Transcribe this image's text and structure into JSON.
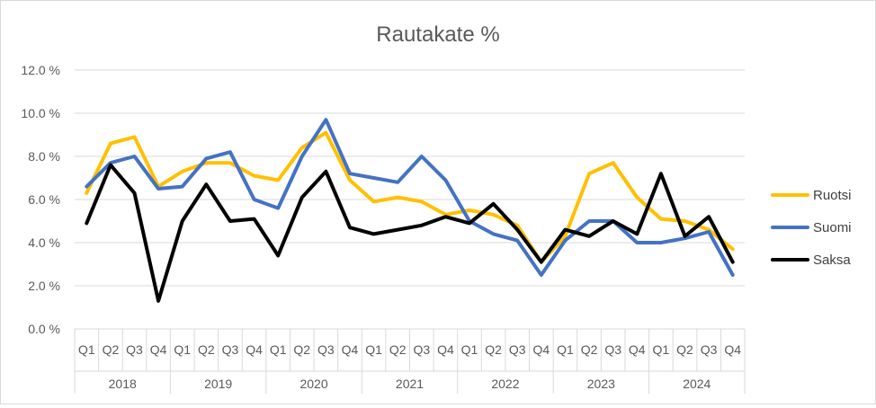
{
  "chart_data": {
    "type": "line",
    "title": "Rautakate %",
    "xlabel": "",
    "ylabel": "",
    "ylim": [
      0,
      12
    ],
    "yticks": [
      "0.0 %",
      "2.0 %",
      "4.0 %",
      "6.0 %",
      "8.0 %",
      "10.0 %",
      "12.0 %"
    ],
    "grid": true,
    "legend_position": "right",
    "quarters": [
      "Q1",
      "Q2",
      "Q3",
      "Q4"
    ],
    "years": [
      "2018",
      "2019",
      "2020",
      "2021",
      "2022",
      "2023",
      "2024"
    ],
    "x": [
      "2018 Q1",
      "2018 Q2",
      "2018 Q3",
      "2018 Q4",
      "2019 Q1",
      "2019 Q2",
      "2019 Q3",
      "2019 Q4",
      "2020 Q1",
      "2020 Q2",
      "2020 Q3",
      "2020 Q4",
      "2021 Q1",
      "2021 Q2",
      "2021 Q3",
      "2021 Q4",
      "2022 Q1",
      "2022 Q2",
      "2022 Q3",
      "2022 Q4",
      "2023 Q1",
      "2023 Q2",
      "2023 Q3",
      "2023 Q4",
      "2024 Q1",
      "2024 Q2",
      "2024 Q3",
      "2024 Q4"
    ],
    "series": [
      {
        "name": "Ruotsi",
        "color": "#ffc000",
        "values": [
          6.3,
          8.6,
          8.9,
          6.6,
          7.3,
          7.7,
          7.7,
          7.1,
          6.9,
          8.4,
          9.1,
          6.9,
          5.9,
          6.1,
          5.9,
          5.3,
          5.5,
          5.3,
          4.8,
          3.1,
          4.3,
          7.2,
          7.7,
          6.1,
          5.1,
          5.0,
          4.6,
          3.7
        ]
      },
      {
        "name": "Suomi",
        "color": "#4472c4",
        "values": [
          6.6,
          7.7,
          8.0,
          6.5,
          6.6,
          7.9,
          8.2,
          6.0,
          5.6,
          8.0,
          9.7,
          7.2,
          7.0,
          6.8,
          8.0,
          6.9,
          5.0,
          4.4,
          4.1,
          2.5,
          4.1,
          5.0,
          5.0,
          4.0,
          4.0,
          4.2,
          4.5,
          2.5
        ]
      },
      {
        "name": "Saksa",
        "color": "#000000",
        "values": [
          4.9,
          7.6,
          6.3,
          1.3,
          5.0,
          6.7,
          5.0,
          5.1,
          3.4,
          6.1,
          7.3,
          4.7,
          4.4,
          4.6,
          4.8,
          5.2,
          4.9,
          5.8,
          4.6,
          3.1,
          4.6,
          4.3,
          5.0,
          4.4,
          7.2,
          4.3,
          5.2,
          3.1
        ]
      }
    ]
  }
}
